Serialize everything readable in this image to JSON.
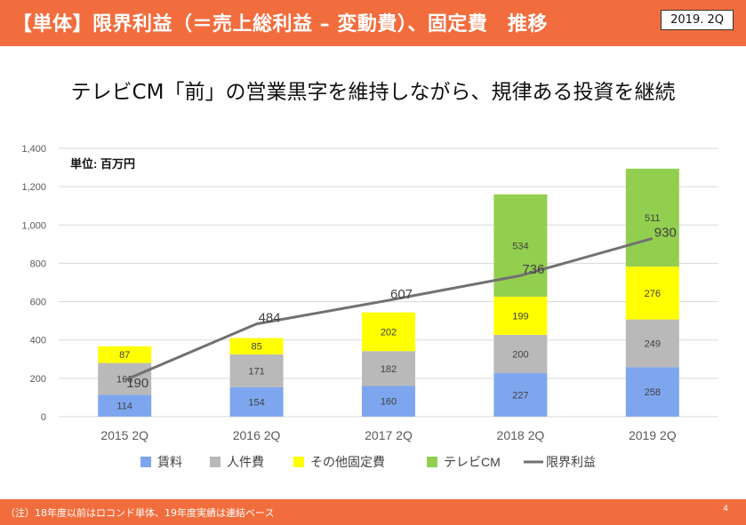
{
  "header": {
    "title": "【単体】限界利益（＝売上総利益 – 変動費）、固定費　推移",
    "date": "2019. 2Q"
  },
  "subtitle": "テレビCM「前」の営業黒字を維持しながら、規律ある投資を継続",
  "footer": {
    "note": "（注）18年度以前はロコンド単体、19年度実績は連結ベース",
    "page": "4"
  },
  "chart_data": {
    "type": "bar",
    "stacked": true,
    "unit_label": "単位: 百万円",
    "categories": [
      "2015 2Q",
      "2016 2Q",
      "2017 2Q",
      "2018 2Q",
      "2019 2Q"
    ],
    "series": [
      {
        "name": "賃料",
        "color": "#7ea6ef",
        "values": [
          114,
          154,
          160,
          227,
          258
        ]
      },
      {
        "name": "人件費",
        "color": "#b9b9b9",
        "values": [
          166,
          171,
          182,
          200,
          249
        ]
      },
      {
        "name": "その他固定費",
        "color": "#ffff00",
        "values": [
          87,
          85,
          202,
          199,
          276
        ]
      },
      {
        "name": "テレビCM",
        "color": "#92cf4f",
        "values": [
          0,
          0,
          0,
          534,
          511
        ]
      }
    ],
    "line": {
      "name": "限界利益",
      "color": "#717171",
      "values": [
        190,
        484,
        607,
        736,
        930
      ]
    },
    "ylim": [
      0,
      1400
    ],
    "yticks": [
      "0",
      "200",
      "400",
      "600",
      "800",
      "1,000",
      "1,200",
      "1,400"
    ],
    "ytick_values": [
      0,
      200,
      400,
      600,
      800,
      1000,
      1200,
      1400
    ],
    "legend_position": "bottom"
  }
}
